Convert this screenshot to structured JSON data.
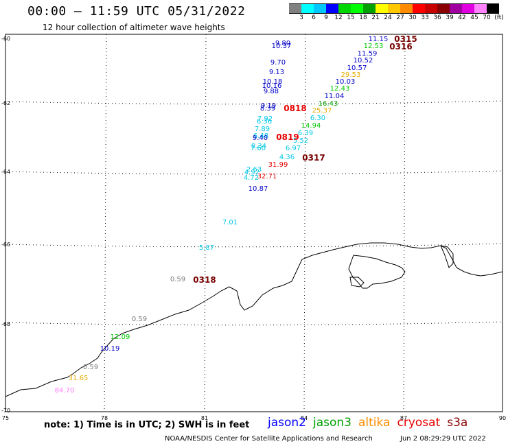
{
  "title": "00:00 – 11:59 UTC 05/31/2022",
  "subtitle": "12 hour collection of altimeter wave heights",
  "scale": {
    "colors": [
      "#808080",
      "#00ffff",
      "#00c8ff",
      "#0000ff",
      "#00d700",
      "#00ff00",
      "#00a000",
      "#ffff00",
      "#ffc800",
      "#ff8c00",
      "#ff0000",
      "#c80000",
      "#8b0000",
      "#a000a0",
      "#e000e0",
      "#ff82ff",
      "#000000"
    ],
    "labels": [
      "3",
      "6",
      "9",
      "12",
      "15",
      "18",
      "21",
      "24",
      "27",
      "30",
      "33",
      "36",
      "39",
      "42",
      "45",
      "70"
    ],
    "unit": "(ft)"
  },
  "lat_labels": [
    "-60",
    "-62",
    "-64",
    "-66",
    "-68",
    "-70"
  ],
  "lon_labels": [
    "75",
    "78",
    "81",
    "84",
    "87",
    "90"
  ],
  "observations": [
    {
      "text": "9.80",
      "color": "#0000c8"
    },
    {
      "text": "10.37",
      "color": "#0000c8"
    },
    {
      "text": "9.70",
      "color": "#0000c8"
    },
    {
      "text": "9.13",
      "color": "#0000c8"
    },
    {
      "text": "10.18",
      "color": "#0000c8"
    },
    {
      "text": "10.16",
      "color": "#0000c8"
    },
    {
      "text": "9.88",
      "color": "#0000c8"
    },
    {
      "text": "9.19",
      "color": "#0000c8"
    },
    {
      "text": "8.39",
      "color": "#0000c8"
    },
    {
      "text": "7.92",
      "color": "#00c8e6"
    },
    {
      "text": "6.36",
      "color": "#00c8e6"
    },
    {
      "text": "7.89",
      "color": "#00c8e6"
    },
    {
      "text": "6.48",
      "color": "#00c8e6"
    },
    {
      "text": "9.40",
      "color": "#0000c8"
    },
    {
      "text": "8.34",
      "color": "#00c8e6"
    },
    {
      "text": "7.60",
      "color": "#00c8e6"
    },
    {
      "text": "2.63",
      "color": "#00c8e6"
    },
    {
      "text": "4.92",
      "color": "#00c8e6"
    },
    {
      "text": "4.72",
      "color": "#00c8e6"
    },
    {
      "text": "10.87",
      "color": "#0000c8"
    },
    {
      "text": "7.01",
      "color": "#00c8e6"
    },
    {
      "text": "5.87",
      "color": "#00c8e6"
    },
    {
      "text": "11.15",
      "color": "#0000c8"
    },
    {
      "text": "12.53",
      "color": "#00c800"
    },
    {
      "text": "11.59",
      "color": "#0000c8"
    },
    {
      "text": "10.52",
      "color": "#0000c8"
    },
    {
      "text": "10.57",
      "color": "#0000c8"
    },
    {
      "text": "29.53",
      "color": "#e6aa00"
    },
    {
      "text": "10.03",
      "color": "#0000c8"
    },
    {
      "text": "12.43",
      "color": "#00c800"
    },
    {
      "text": "11.04",
      "color": "#0000c8"
    },
    {
      "text": "16.43",
      "color": "#00a000"
    },
    {
      "text": "25.37",
      "color": "#e6aa00"
    },
    {
      "text": "6.30",
      "color": "#00c8e6"
    },
    {
      "text": "14.94",
      "color": "#00c800"
    },
    {
      "text": "6.39",
      "color": "#00c8e6"
    },
    {
      "text": "5.52",
      "color": "#00c8e6"
    },
    {
      "text": "6.97",
      "color": "#00c8e6"
    },
    {
      "text": "4.36",
      "color": "#00c8e6"
    },
    {
      "text": "31.99",
      "color": "#e60000"
    },
    {
      "text": "32.71",
      "color": "#e60000"
    },
    {
      "text": "0.59",
      "color": "#787878"
    },
    {
      "text": "0.59",
      "color": "#787878"
    },
    {
      "text": "12.09",
      "color": "#00c800"
    },
    {
      "text": "10.19",
      "color": "#0000c8"
    },
    {
      "text": "0.59",
      "color": "#787878"
    },
    {
      "text": "31.65",
      "color": "#e6aa00"
    },
    {
      "text": "84.70",
      "color": "#ff78ff"
    }
  ],
  "time_markers": [
    {
      "text": "0315",
      "color": "#780000"
    },
    {
      "text": "0316",
      "color": "#780000"
    },
    {
      "text": "0818",
      "color": "#e60000"
    },
    {
      "text": "0819",
      "color": "#e60000"
    },
    {
      "text": "0317",
      "color": "#780000"
    },
    {
      "text": "0318",
      "color": "#780000"
    }
  ],
  "note": "note: 1) Time is in UTC; 2) SWH is in feet",
  "legend": [
    {
      "text": "jason2",
      "color": "#0000ff"
    },
    {
      "text": "jason3",
      "color": "#00a000"
    },
    {
      "text": "altika",
      "color": "#ff8c00"
    },
    {
      "text": "cryosat",
      "color": "#e60000"
    },
    {
      "text": "s3a",
      "color": "#8b0000"
    }
  ],
  "footer": "NOAA/NESDIS Center for Satellite Applications and Research",
  "footer_date": "Jun  2 08:29:29 UTC 2022"
}
